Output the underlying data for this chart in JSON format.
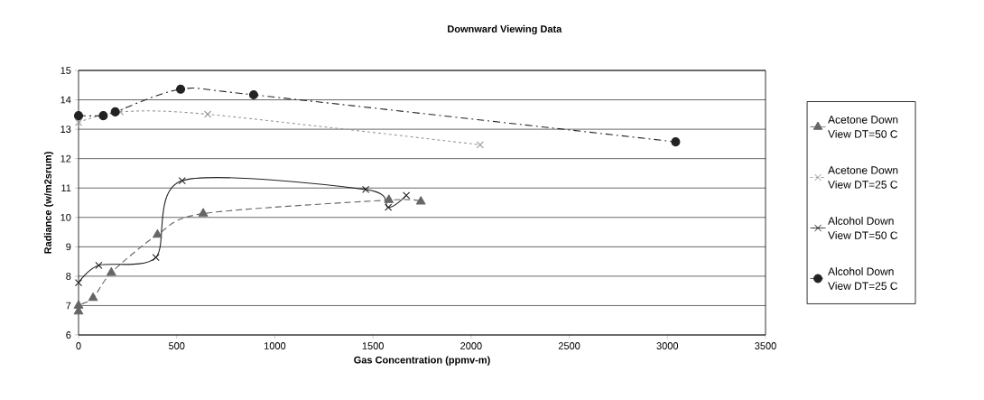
{
  "chart_data": {
    "type": "line",
    "title": "Downward Viewing Data",
    "xlabel": "Gas Concentration (ppmv-m)",
    "ylabel": "Radiance (w/m2srum)",
    "xlim": [
      0,
      3500
    ],
    "xticks": [
      0,
      500,
      1000,
      1500,
      2000,
      2500,
      3000,
      3500
    ],
    "ylim": [
      6,
      15
    ],
    "yticks": [
      6,
      7,
      8,
      9,
      10,
      11,
      12,
      13,
      14,
      15
    ],
    "grid": "y",
    "legend": "right",
    "series": [
      {
        "name": "Acetone Down View DT=50 C",
        "color": "#666666",
        "marker": "triangle",
        "line_style": "dashed",
        "x": [
          0,
          0,
          74,
          167,
          402,
          635,
          1581,
          1744
        ],
        "values": [
          6.8,
          7.0,
          7.26,
          8.12,
          9.41,
          10.13,
          10.59,
          10.54
        ]
      },
      {
        "name": "Acetone Down View DT=25 C",
        "color": "#999999",
        "marker": "cross",
        "line_style": "dotted",
        "x": [
          0,
          212,
          658,
          2046
        ],
        "values": [
          13.23,
          13.59,
          13.51,
          12.47
        ]
      },
      {
        "name": "Alcohol Down View DT=50 C",
        "color": "#222222",
        "marker": "cross",
        "line_style": "solid",
        "x": [
          0,
          103,
          394,
          528,
          1463,
          1578,
          1670
        ],
        "values": [
          7.78,
          8.37,
          8.64,
          11.25,
          10.95,
          10.34,
          10.75
        ]
      },
      {
        "name": "Alcohol Down View DT=25 C",
        "color": "#222222",
        "marker": "circle",
        "line_style": "dashdot",
        "x": [
          0,
          126,
          187,
          520,
          892,
          3042
        ],
        "values": [
          13.46,
          13.46,
          13.59,
          14.36,
          14.17,
          12.57
        ]
      }
    ]
  }
}
